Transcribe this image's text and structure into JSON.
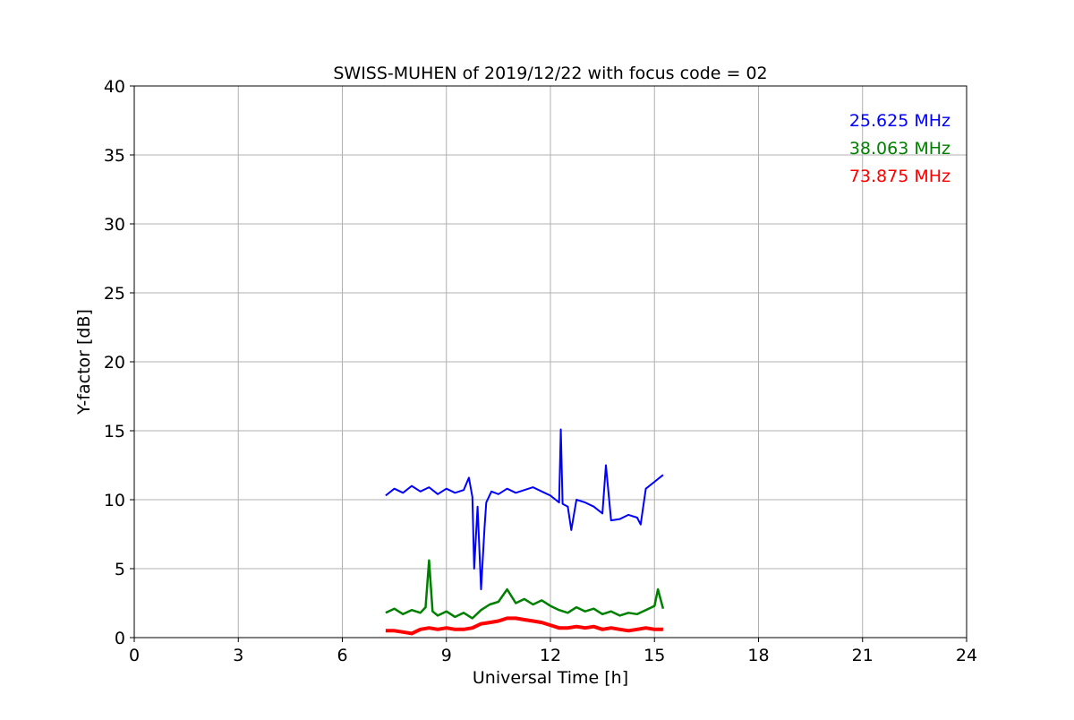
{
  "chart_data": {
    "type": "line",
    "title": "SWISS-MUHEN of 2019/12/22 with focus code = 02",
    "xlabel": "Universal Time [h]",
    "ylabel": "Y-factor [dB]",
    "xlim": [
      0,
      24
    ],
    "ylim": [
      0,
      40
    ],
    "xticks": [
      0,
      3,
      6,
      9,
      12,
      15,
      18,
      21,
      24
    ],
    "yticks": [
      0,
      5,
      10,
      15,
      20,
      25,
      30,
      35,
      40
    ],
    "grid": true,
    "legend_position": "top-right",
    "series": [
      {
        "name": "25.625 MHz",
        "color": "#0000ff",
        "points": [
          [
            7.25,
            10.3
          ],
          [
            7.5,
            10.8
          ],
          [
            7.75,
            10.5
          ],
          [
            8.0,
            11.0
          ],
          [
            8.25,
            10.6
          ],
          [
            8.5,
            10.9
          ],
          [
            8.75,
            10.4
          ],
          [
            9.0,
            10.8
          ],
          [
            9.25,
            10.5
          ],
          [
            9.5,
            10.7
          ],
          [
            9.65,
            11.6
          ],
          [
            9.75,
            10.2
          ],
          [
            9.8,
            5.0
          ],
          [
            9.9,
            9.5
          ],
          [
            10.0,
            3.5
          ],
          [
            10.1,
            8.0
          ],
          [
            10.15,
            9.8
          ],
          [
            10.3,
            10.6
          ],
          [
            10.5,
            10.4
          ],
          [
            10.75,
            10.8
          ],
          [
            11.0,
            10.5
          ],
          [
            11.25,
            10.7
          ],
          [
            11.5,
            10.9
          ],
          [
            11.75,
            10.6
          ],
          [
            12.0,
            10.3
          ],
          [
            12.25,
            9.8
          ],
          [
            12.3,
            15.1
          ],
          [
            12.35,
            9.7
          ],
          [
            12.5,
            9.5
          ],
          [
            12.6,
            7.8
          ],
          [
            12.75,
            10.0
          ],
          [
            13.0,
            9.8
          ],
          [
            13.25,
            9.5
          ],
          [
            13.5,
            9.0
          ],
          [
            13.6,
            12.5
          ],
          [
            13.75,
            8.5
          ],
          [
            14.0,
            8.6
          ],
          [
            14.25,
            8.9
          ],
          [
            14.5,
            8.7
          ],
          [
            14.6,
            8.2
          ],
          [
            14.75,
            10.8
          ],
          [
            15.0,
            11.3
          ],
          [
            15.25,
            11.8
          ]
        ]
      },
      {
        "name": "38.063 MHz",
        "color": "#008000",
        "points": [
          [
            7.25,
            1.8
          ],
          [
            7.5,
            2.1
          ],
          [
            7.75,
            1.7
          ],
          [
            8.0,
            2.0
          ],
          [
            8.25,
            1.8
          ],
          [
            8.4,
            2.2
          ],
          [
            8.5,
            5.6
          ],
          [
            8.6,
            1.9
          ],
          [
            8.75,
            1.6
          ],
          [
            9.0,
            1.9
          ],
          [
            9.25,
            1.5
          ],
          [
            9.5,
            1.8
          ],
          [
            9.75,
            1.4
          ],
          [
            10.0,
            2.0
          ],
          [
            10.25,
            2.4
          ],
          [
            10.5,
            2.6
          ],
          [
            10.75,
            3.5
          ],
          [
            11.0,
            2.5
          ],
          [
            11.25,
            2.8
          ],
          [
            11.5,
            2.4
          ],
          [
            11.75,
            2.7
          ],
          [
            12.0,
            2.3
          ],
          [
            12.25,
            2.0
          ],
          [
            12.5,
            1.8
          ],
          [
            12.75,
            2.2
          ],
          [
            13.0,
            1.9
          ],
          [
            13.25,
            2.1
          ],
          [
            13.5,
            1.7
          ],
          [
            13.75,
            1.9
          ],
          [
            14.0,
            1.6
          ],
          [
            14.25,
            1.8
          ],
          [
            14.5,
            1.7
          ],
          [
            14.75,
            2.0
          ],
          [
            15.0,
            2.3
          ],
          [
            15.1,
            3.5
          ],
          [
            15.25,
            2.1
          ]
        ]
      },
      {
        "name": "73.875 MHz",
        "color": "#ff0000",
        "points": [
          [
            7.25,
            0.5
          ],
          [
            7.5,
            0.5
          ],
          [
            7.75,
            0.4
          ],
          [
            8.0,
            0.3
          ],
          [
            8.25,
            0.6
          ],
          [
            8.5,
            0.7
          ],
          [
            8.75,
            0.6
          ],
          [
            9.0,
            0.7
          ],
          [
            9.25,
            0.6
          ],
          [
            9.5,
            0.6
          ],
          [
            9.75,
            0.7
          ],
          [
            10.0,
            1.0
          ],
          [
            10.25,
            1.1
          ],
          [
            10.5,
            1.2
          ],
          [
            10.75,
            1.4
          ],
          [
            11.0,
            1.4
          ],
          [
            11.25,
            1.3
          ],
          [
            11.5,
            1.2
          ],
          [
            11.75,
            1.1
          ],
          [
            12.0,
            0.9
          ],
          [
            12.25,
            0.7
          ],
          [
            12.5,
            0.7
          ],
          [
            12.75,
            0.8
          ],
          [
            13.0,
            0.7
          ],
          [
            13.25,
            0.8
          ],
          [
            13.5,
            0.6
          ],
          [
            13.75,
            0.7
          ],
          [
            14.0,
            0.6
          ],
          [
            14.25,
            0.5
          ],
          [
            14.5,
            0.6
          ],
          [
            14.75,
            0.7
          ],
          [
            15.0,
            0.6
          ],
          [
            15.25,
            0.6
          ]
        ]
      }
    ]
  }
}
